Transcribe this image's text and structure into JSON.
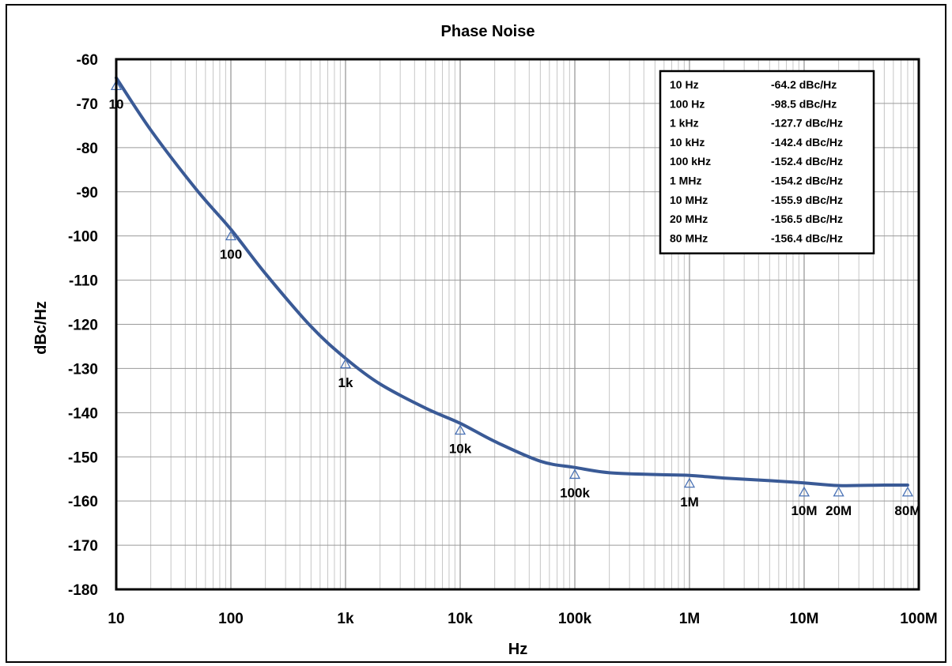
{
  "chart_data": {
    "type": "line",
    "title": "Phase Noise",
    "xlabel": "Hz",
    "ylabel": "dBc/Hz",
    "x_scale": "log",
    "xlim": [
      10,
      100000000
    ],
    "ylim": [
      -180,
      -60
    ],
    "grid": true,
    "x_ticks": [
      {
        "value": 10,
        "label": "10"
      },
      {
        "value": 100,
        "label": "100"
      },
      {
        "value": 1000,
        "label": "1k"
      },
      {
        "value": 10000,
        "label": "10k"
      },
      {
        "value": 100000,
        "label": "100k"
      },
      {
        "value": 1000000,
        "label": "1M"
      },
      {
        "value": 10000000,
        "label": "10M"
      },
      {
        "value": 100000000,
        "label": "100M"
      }
    ],
    "y_ticks": [
      -60,
      -70,
      -80,
      -90,
      -100,
      -110,
      -120,
      -130,
      -140,
      -150,
      -160,
      -170,
      -180
    ],
    "series": [
      {
        "color": "#3a5a96",
        "x": [
          10,
          20,
          50,
          100,
          200,
          500,
          1000,
          2000,
          5000,
          10000,
          20000,
          50000,
          100000,
          200000,
          500000,
          1000000,
          2000000,
          5000000,
          10000000,
          20000000,
          50000000,
          80000000
        ],
        "y": [
          -64.2,
          -76,
          -89.5,
          -98.5,
          -108.5,
          -120.5,
          -127.7,
          -133.5,
          -139,
          -142.4,
          -146.5,
          -151,
          -152.4,
          -153.6,
          -154,
          -154.2,
          -154.8,
          -155.4,
          -155.9,
          -156.5,
          -156.4,
          -156.4
        ]
      }
    ],
    "markers": [
      {
        "x": 10,
        "y": -66,
        "label": "10"
      },
      {
        "x": 100,
        "y": -100,
        "label": "100"
      },
      {
        "x": 1000,
        "y": -129,
        "label": "1k"
      },
      {
        "x": 10000,
        "y": -144,
        "label": "10k"
      },
      {
        "x": 100000,
        "y": -154,
        "label": "100k"
      },
      {
        "x": 1000000,
        "y": -156,
        "label": "1M"
      },
      {
        "x": 10000000,
        "y": -158,
        "label": "10M"
      },
      {
        "x": 20000000,
        "y": -158,
        "label": "20M"
      },
      {
        "x": 80000000,
        "y": -158,
        "label": "80M"
      }
    ],
    "legend_table": {
      "position": "top-right",
      "rows": [
        {
          "freq": "10 Hz",
          "value": "-64.2 dBc/Hz"
        },
        {
          "freq": "100 Hz",
          "value": "-98.5 dBc/Hz"
        },
        {
          "freq": "1 kHz",
          "value": "-127.7 dBc/Hz"
        },
        {
          "freq": "10 kHz",
          "value": "-142.4 dBc/Hz"
        },
        {
          "freq": "100 kHz",
          "value": "-152.4 dBc/Hz"
        },
        {
          "freq": "1 MHz",
          "value": "-154.2 dBc/Hz"
        },
        {
          "freq": "10 MHz",
          "value": "-155.9 dBc/Hz"
        },
        {
          "freq": "20 MHz",
          "value": "-156.5 dBc/Hz"
        },
        {
          "freq": "80 MHz",
          "value": "-156.4 dBc/Hz"
        }
      ]
    }
  }
}
